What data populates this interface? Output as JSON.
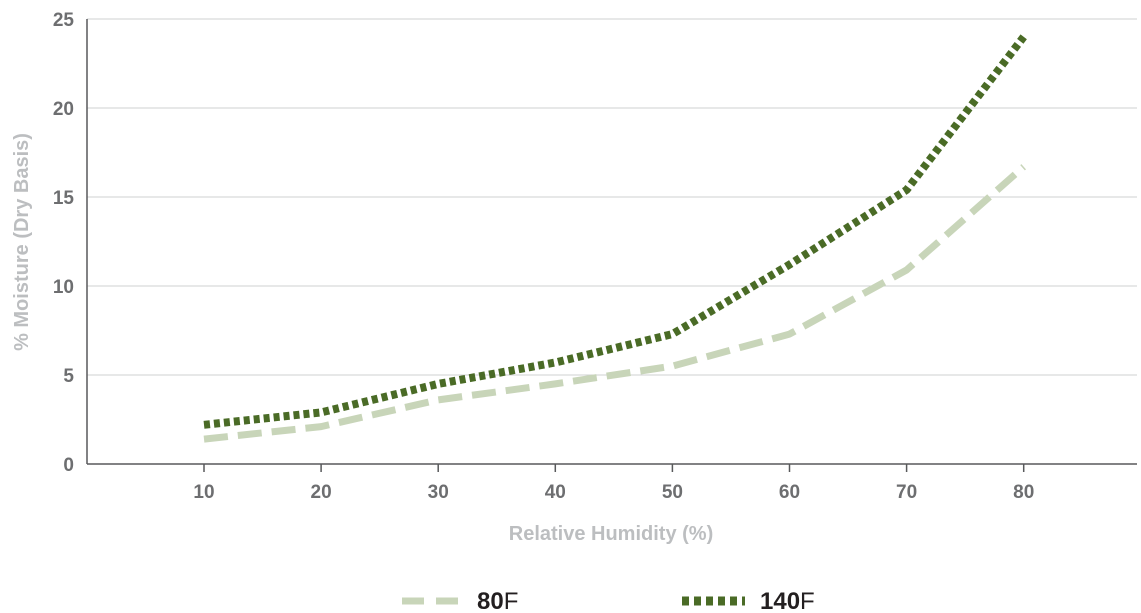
{
  "chart_data": {
    "type": "line",
    "title": "",
    "xlabel": "Relative Humidity (%)",
    "ylabel": "% Moisture (Dry Basis)",
    "x": [
      10,
      20,
      30,
      40,
      50,
      60,
      70,
      80
    ],
    "xticks": [
      "10",
      "20",
      "30",
      "40",
      "50",
      "60",
      "70",
      "80"
    ],
    "yticks": [
      "0",
      "5",
      "10",
      "15",
      "20",
      "25"
    ],
    "xlim": [
      0,
      80
    ],
    "ylim": [
      0,
      25
    ],
    "grid": true,
    "legend_position": "bottom",
    "series": [
      {
        "name": "80F",
        "label_bold": "80",
        "label_rest": "F",
        "color": "#c8d5b9",
        "style": "dashed",
        "values": [
          1.4,
          2.1,
          3.6,
          4.5,
          5.5,
          7.3,
          10.9,
          16.7
        ]
      },
      {
        "name": "140F",
        "label_bold": "140",
        "label_rest": "F",
        "color": "#4a6b26",
        "style": "dotted",
        "values": [
          2.2,
          2.9,
          4.5,
          5.7,
          7.3,
          11.2,
          15.4,
          24.0
        ]
      }
    ]
  }
}
